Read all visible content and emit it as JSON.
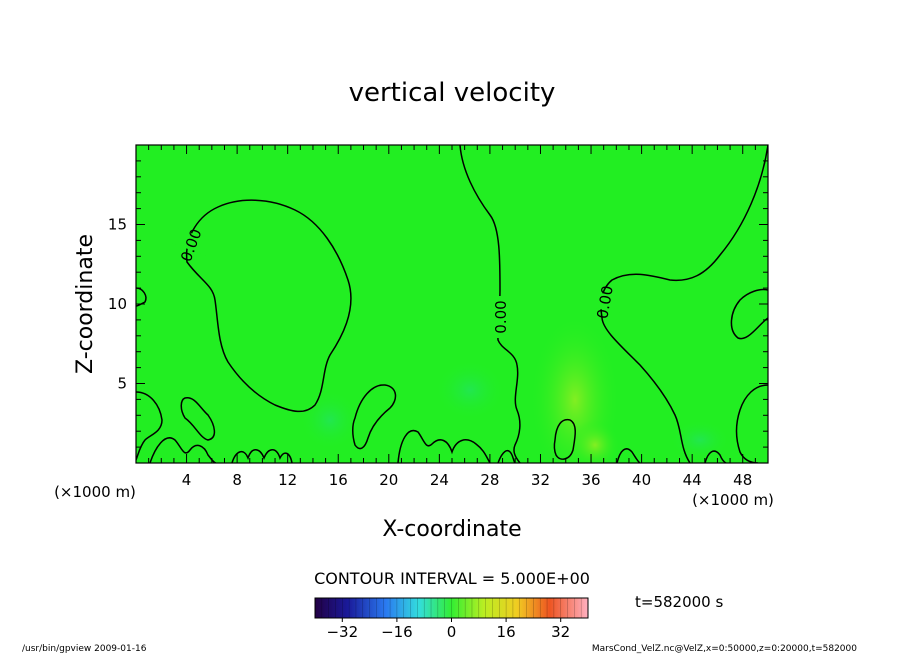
{
  "chart_data": {
    "type": "heatmap",
    "title": "vertical velocity",
    "xlabel": "X-coordinate",
    "ylabel": "Z-coordinate",
    "x_unit": "(×1000 m)",
    "y_unit": "(×1000 m)",
    "xlim": [
      0,
      50
    ],
    "ylim": [
      0,
      20
    ],
    "x_ticks": [
      "4",
      "8",
      "12",
      "16",
      "20",
      "24",
      "28",
      "32",
      "36",
      "40",
      "44",
      "48"
    ],
    "y_ticks": [
      "5",
      "10",
      "15"
    ],
    "contour_labels": [
      "0.00",
      "0.00",
      "0.00"
    ],
    "contour_interval_text": "CONTOUR INTERVAL = 5.000E+00",
    "time_text": "t=582000 s",
    "colorbar": {
      "range": [
        -40,
        40
      ],
      "tick_labels": [
        "−32",
        "−16",
        "0",
        "16",
        "32"
      ],
      "tick_values": [
        -32,
        -16,
        0,
        16,
        32
      ]
    },
    "colors": {
      "field_background": "#22ee22",
      "contour": "#000000"
    }
  },
  "footer": {
    "left": "/usr/bin/gpview   2009-01-16",
    "right": "MarsCond_VelZ.nc@VelZ,x=0:50000,z=0:20000,t=582000"
  }
}
